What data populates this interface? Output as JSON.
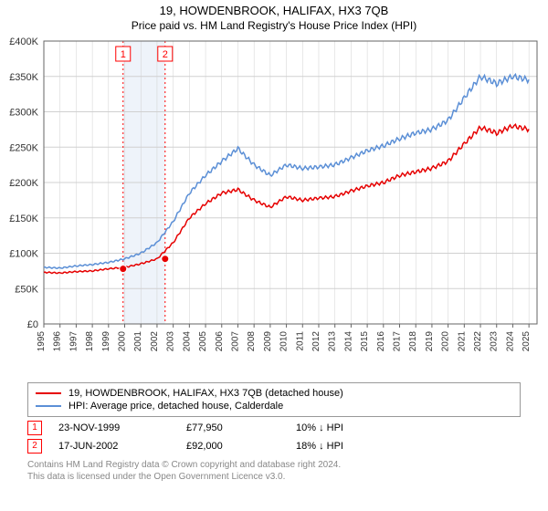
{
  "title": "19, HOWDENBROOK, HALIFAX, HX3 7QB",
  "subtitle": "Price paid vs. HM Land Registry's House Price Index (HPI)",
  "chart": {
    "type": "line",
    "background": "#ffffff",
    "plot_border": "#666666",
    "grid_color": "#d0d0d0",
    "axis_color": "#666666",
    "xlim": [
      1995,
      2025.5
    ],
    "xtick_step": 1,
    "ylim": [
      0,
      400000
    ],
    "ytick_step": 50000,
    "ylabel_prefix": "£",
    "ylabel_suffix": "K",
    "highlight_band": {
      "from": 1999.9,
      "to": 2002.5,
      "color": "#eef3fa"
    },
    "vlines": [
      {
        "x": 1999.9,
        "color": "#ff0000",
        "dash": "2,3"
      },
      {
        "x": 2002.5,
        "color": "#ff0000",
        "dash": "2,3"
      }
    ],
    "markers": [
      {
        "x": 1999.9,
        "y": 77950,
        "label": "1",
        "box_color": "#ff0000"
      },
      {
        "x": 2002.5,
        "y": 92000,
        "label": "2",
        "box_color": "#ff0000"
      }
    ],
    "series": [
      {
        "name": "price_paid",
        "label": "19, HOWDENBROOK, HALIFAX, HX3 7QB (detached house)",
        "color": "#e60000",
        "width": 1.5,
        "data": [
          [
            1995,
            73000
          ],
          [
            1996,
            72000
          ],
          [
            1997,
            74000
          ],
          [
            1998,
            75000
          ],
          [
            1999,
            78000
          ],
          [
            2000,
            80000
          ],
          [
            2001,
            85000
          ],
          [
            2002,
            92000
          ],
          [
            2003,
            115000
          ],
          [
            2004,
            150000
          ],
          [
            2005,
            170000
          ],
          [
            2006,
            185000
          ],
          [
            2007,
            190000
          ],
          [
            2008,
            175000
          ],
          [
            2009,
            165000
          ],
          [
            2010,
            180000
          ],
          [
            2011,
            175000
          ],
          [
            2012,
            178000
          ],
          [
            2013,
            180000
          ],
          [
            2014,
            188000
          ],
          [
            2015,
            195000
          ],
          [
            2016,
            200000
          ],
          [
            2017,
            210000
          ],
          [
            2018,
            215000
          ],
          [
            2019,
            220000
          ],
          [
            2020,
            230000
          ],
          [
            2021,
            255000
          ],
          [
            2022,
            278000
          ],
          [
            2023,
            270000
          ],
          [
            2024,
            280000
          ],
          [
            2025,
            275000
          ]
        ]
      },
      {
        "name": "hpi",
        "label": "HPI: Average price, detached house, Calderdale",
        "color": "#5b8fd6",
        "width": 1.5,
        "data": [
          [
            1995,
            80000
          ],
          [
            1996,
            79000
          ],
          [
            1997,
            82000
          ],
          [
            1998,
            84000
          ],
          [
            1999,
            87000
          ],
          [
            2000,
            92000
          ],
          [
            2001,
            100000
          ],
          [
            2002,
            115000
          ],
          [
            2003,
            145000
          ],
          [
            2004,
            185000
          ],
          [
            2005,
            210000
          ],
          [
            2006,
            230000
          ],
          [
            2007,
            248000
          ],
          [
            2008,
            225000
          ],
          [
            2009,
            210000
          ],
          [
            2010,
            225000
          ],
          [
            2011,
            220000
          ],
          [
            2012,
            222000
          ],
          [
            2013,
            225000
          ],
          [
            2014,
            235000
          ],
          [
            2015,
            245000
          ],
          [
            2016,
            252000
          ],
          [
            2017,
            262000
          ],
          [
            2018,
            270000
          ],
          [
            2019,
            275000
          ],
          [
            2020,
            288000
          ],
          [
            2021,
            320000
          ],
          [
            2022,
            350000
          ],
          [
            2023,
            340000
          ],
          [
            2024,
            350000
          ],
          [
            2025,
            345000
          ]
        ]
      }
    ]
  },
  "legend": {
    "rows": [
      {
        "color": "#e60000",
        "text": "19, HOWDENBROOK, HALIFAX, HX3 7QB (detached house)"
      },
      {
        "color": "#5b8fd6",
        "text": "HPI: Average price, detached house, Calderdale"
      }
    ]
  },
  "sales": [
    {
      "num": "1",
      "date": "23-NOV-1999",
      "price": "£77,950",
      "diff": "10% ↓ HPI"
    },
    {
      "num": "2",
      "date": "17-JUN-2002",
      "price": "£92,000",
      "diff": "18% ↓ HPI"
    }
  ],
  "attribution": {
    "line1": "Contains HM Land Registry data © Crown copyright and database right 2024.",
    "line2": "This data is licensed under the Open Government Licence v3.0."
  }
}
